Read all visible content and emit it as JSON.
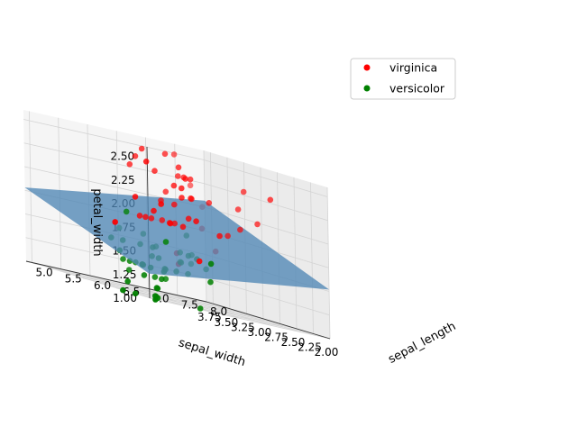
{
  "chart_data": {
    "type": "scatter",
    "projection": "3d",
    "title": "",
    "xlabel": "sepal_length",
    "ylabel": "sepal_width",
    "zlabel": "petal_width",
    "xlim": [
      4.9,
      8.0
    ],
    "ylim": [
      2.0,
      3.85
    ],
    "zlim": [
      1.0,
      2.6
    ],
    "x_ticks": [
      "5.0",
      "5.5",
      "6.0",
      "6.5",
      "7.0",
      "7.5",
      "8.0"
    ],
    "y_ticks": [
      "2.00",
      "2.25",
      "2.50",
      "2.75",
      "3.00",
      "3.25",
      "3.50",
      "3.75"
    ],
    "z_ticks": [
      "1.00",
      "1.25",
      "1.50",
      "1.75",
      "2.00",
      "2.25",
      "2.50"
    ],
    "grid": true,
    "legend_position": "top-right",
    "surface": {
      "type": "regression-plane",
      "color": "#4f86b5",
      "corners": [
        {
          "x": 4.9,
          "y": 2.0,
          "z": 1.26
        },
        {
          "x": 8.0,
          "y": 2.0,
          "z": 1.52
        },
        {
          "x": 8.0,
          "y": 3.85,
          "z": 2.07
        },
        {
          "x": 4.9,
          "y": 3.85,
          "z": 1.78
        }
      ]
    },
    "series": [
      {
        "name": "virginica",
        "color": "#ff0000",
        "points": [
          [
            6.3,
            3.3,
            2.5
          ],
          [
            5.8,
            2.7,
            1.9
          ],
          [
            7.1,
            3.0,
            2.1
          ],
          [
            6.3,
            2.9,
            1.8
          ],
          [
            6.5,
            3.0,
            2.2
          ],
          [
            7.6,
            3.0,
            2.1
          ],
          [
            4.9,
            2.5,
            1.7
          ],
          [
            7.3,
            2.9,
            1.8
          ],
          [
            6.7,
            2.5,
            1.8
          ],
          [
            7.2,
            3.6,
            2.5
          ],
          [
            6.5,
            3.2,
            2.0
          ],
          [
            6.4,
            2.7,
            1.9
          ],
          [
            6.8,
            3.0,
            2.1
          ],
          [
            5.7,
            2.5,
            2.0
          ],
          [
            5.8,
            2.8,
            2.4
          ],
          [
            6.4,
            3.2,
            2.3
          ],
          [
            6.5,
            3.0,
            1.8
          ],
          [
            7.7,
            3.8,
            2.2
          ],
          [
            7.7,
            2.6,
            2.3
          ],
          [
            6.0,
            2.2,
            1.5
          ],
          [
            6.9,
            3.2,
            2.3
          ],
          [
            5.6,
            2.8,
            2.0
          ],
          [
            7.7,
            2.8,
            2.0
          ],
          [
            6.3,
            2.7,
            1.8
          ],
          [
            6.7,
            3.3,
            2.1
          ],
          [
            7.2,
            3.2,
            1.8
          ],
          [
            6.2,
            2.8,
            1.8
          ],
          [
            6.1,
            3.0,
            1.8
          ],
          [
            6.4,
            2.8,
            2.1
          ],
          [
            7.2,
            3.0,
            1.6
          ],
          [
            7.4,
            2.8,
            1.9
          ],
          [
            7.9,
            3.8,
            2.0
          ],
          [
            6.4,
            2.8,
            2.2
          ],
          [
            6.3,
            2.8,
            1.5
          ],
          [
            6.1,
            2.6,
            1.4
          ],
          [
            7.7,
            3.0,
            2.3
          ],
          [
            6.3,
            3.4,
            2.4
          ],
          [
            6.4,
            3.1,
            1.8
          ],
          [
            6.0,
            3.0,
            1.8
          ],
          [
            6.9,
            3.1,
            2.1
          ],
          [
            6.7,
            3.1,
            2.4
          ],
          [
            6.9,
            3.1,
            2.3
          ],
          [
            6.8,
            3.2,
            2.3
          ],
          [
            6.7,
            3.3,
            2.5
          ],
          [
            6.7,
            3.0,
            2.3
          ],
          [
            6.3,
            2.5,
            1.9
          ],
          [
            6.5,
            3.0,
            2.0
          ],
          [
            6.2,
            3.4,
            2.3
          ],
          [
            5.9,
            3.0,
            1.8
          ]
        ]
      },
      {
        "name": "versicolor",
        "color": "#008000",
        "points": [
          [
            7.0,
            3.2,
            1.4
          ],
          [
            6.4,
            3.2,
            1.5
          ],
          [
            6.9,
            3.1,
            1.5
          ],
          [
            5.5,
            2.3,
            1.3
          ],
          [
            6.5,
            2.8,
            1.5
          ],
          [
            5.7,
            2.8,
            1.3
          ],
          [
            6.3,
            3.3,
            1.6
          ],
          [
            4.9,
            2.4,
            1.0
          ],
          [
            6.6,
            2.9,
            1.3
          ],
          [
            5.2,
            2.7,
            1.4
          ],
          [
            5.0,
            2.0,
            1.0
          ],
          [
            5.9,
            3.0,
            1.5
          ],
          [
            6.0,
            2.2,
            1.0
          ],
          [
            6.1,
            2.9,
            1.4
          ],
          [
            5.6,
            2.9,
            1.3
          ],
          [
            6.7,
            3.1,
            1.4
          ],
          [
            5.6,
            3.0,
            1.5
          ],
          [
            5.8,
            2.7,
            1.0
          ],
          [
            6.2,
            2.2,
            1.5
          ],
          [
            5.6,
            2.5,
            1.1
          ],
          [
            5.9,
            3.2,
            1.8
          ],
          [
            6.1,
            2.8,
            1.3
          ],
          [
            6.3,
            2.5,
            1.5
          ],
          [
            6.1,
            2.8,
            1.2
          ],
          [
            6.4,
            2.9,
            1.3
          ],
          [
            6.6,
            3.0,
            1.4
          ],
          [
            6.8,
            2.8,
            1.4
          ],
          [
            6.7,
            3.0,
            1.7
          ],
          [
            6.0,
            2.9,
            1.5
          ],
          [
            5.7,
            2.6,
            1.0
          ],
          [
            5.5,
            2.4,
            1.1
          ],
          [
            5.5,
            2.4,
            1.0
          ],
          [
            5.8,
            2.7,
            1.2
          ],
          [
            6.0,
            2.7,
            1.6
          ],
          [
            5.4,
            3.0,
            1.5
          ],
          [
            6.0,
            3.4,
            1.6
          ],
          [
            6.7,
            3.1,
            1.5
          ],
          [
            6.3,
            2.3,
            1.3
          ],
          [
            5.6,
            3.0,
            1.3
          ],
          [
            5.5,
            2.5,
            1.3
          ],
          [
            5.5,
            2.6,
            1.2
          ],
          [
            6.1,
            3.0,
            1.4
          ],
          [
            5.8,
            2.6,
            1.2
          ],
          [
            5.0,
            2.3,
            1.0
          ],
          [
            5.6,
            2.7,
            1.3
          ],
          [
            5.7,
            3.0,
            1.2
          ],
          [
            5.7,
            2.9,
            1.3
          ],
          [
            6.2,
            2.9,
            1.3
          ],
          [
            5.1,
            2.5,
            1.1
          ],
          [
            5.7,
            2.8,
            1.3
          ]
        ]
      }
    ]
  }
}
